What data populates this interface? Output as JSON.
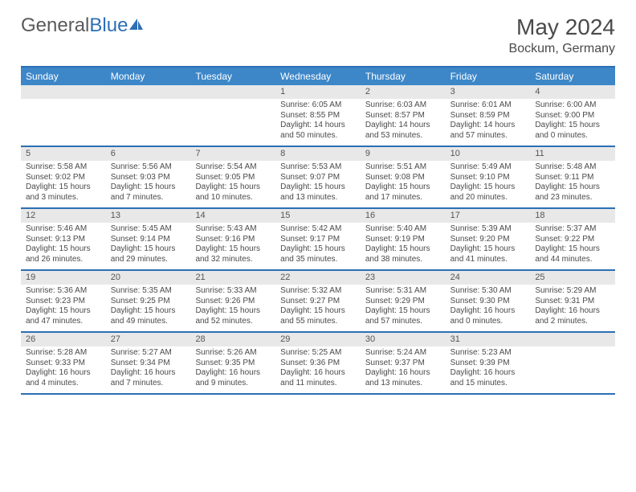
{
  "logo": {
    "part1": "General",
    "part2": "Blue"
  },
  "title": "May 2024",
  "location": "Bockum, Germany",
  "colors": {
    "header_bg": "#3d87c9",
    "border": "#2d6fb5",
    "daynum_bg": "#e8e8e8",
    "text": "#4a4a4a",
    "page_bg": "#ffffff"
  },
  "day_headers": [
    "Sunday",
    "Monday",
    "Tuesday",
    "Wednesday",
    "Thursday",
    "Friday",
    "Saturday"
  ],
  "weeks": [
    [
      {
        "n": "",
        "sr": "",
        "ss": "",
        "dl": ""
      },
      {
        "n": "",
        "sr": "",
        "ss": "",
        "dl": ""
      },
      {
        "n": "",
        "sr": "",
        "ss": "",
        "dl": ""
      },
      {
        "n": "1",
        "sr": "Sunrise: 6:05 AM",
        "ss": "Sunset: 8:55 PM",
        "dl": "Daylight: 14 hours and 50 minutes."
      },
      {
        "n": "2",
        "sr": "Sunrise: 6:03 AM",
        "ss": "Sunset: 8:57 PM",
        "dl": "Daylight: 14 hours and 53 minutes."
      },
      {
        "n": "3",
        "sr": "Sunrise: 6:01 AM",
        "ss": "Sunset: 8:59 PM",
        "dl": "Daylight: 14 hours and 57 minutes."
      },
      {
        "n": "4",
        "sr": "Sunrise: 6:00 AM",
        "ss": "Sunset: 9:00 PM",
        "dl": "Daylight: 15 hours and 0 minutes."
      }
    ],
    [
      {
        "n": "5",
        "sr": "Sunrise: 5:58 AM",
        "ss": "Sunset: 9:02 PM",
        "dl": "Daylight: 15 hours and 3 minutes."
      },
      {
        "n": "6",
        "sr": "Sunrise: 5:56 AM",
        "ss": "Sunset: 9:03 PM",
        "dl": "Daylight: 15 hours and 7 minutes."
      },
      {
        "n": "7",
        "sr": "Sunrise: 5:54 AM",
        "ss": "Sunset: 9:05 PM",
        "dl": "Daylight: 15 hours and 10 minutes."
      },
      {
        "n": "8",
        "sr": "Sunrise: 5:53 AM",
        "ss": "Sunset: 9:07 PM",
        "dl": "Daylight: 15 hours and 13 minutes."
      },
      {
        "n": "9",
        "sr": "Sunrise: 5:51 AM",
        "ss": "Sunset: 9:08 PM",
        "dl": "Daylight: 15 hours and 17 minutes."
      },
      {
        "n": "10",
        "sr": "Sunrise: 5:49 AM",
        "ss": "Sunset: 9:10 PM",
        "dl": "Daylight: 15 hours and 20 minutes."
      },
      {
        "n": "11",
        "sr": "Sunrise: 5:48 AM",
        "ss": "Sunset: 9:11 PM",
        "dl": "Daylight: 15 hours and 23 minutes."
      }
    ],
    [
      {
        "n": "12",
        "sr": "Sunrise: 5:46 AM",
        "ss": "Sunset: 9:13 PM",
        "dl": "Daylight: 15 hours and 26 minutes."
      },
      {
        "n": "13",
        "sr": "Sunrise: 5:45 AM",
        "ss": "Sunset: 9:14 PM",
        "dl": "Daylight: 15 hours and 29 minutes."
      },
      {
        "n": "14",
        "sr": "Sunrise: 5:43 AM",
        "ss": "Sunset: 9:16 PM",
        "dl": "Daylight: 15 hours and 32 minutes."
      },
      {
        "n": "15",
        "sr": "Sunrise: 5:42 AM",
        "ss": "Sunset: 9:17 PM",
        "dl": "Daylight: 15 hours and 35 minutes."
      },
      {
        "n": "16",
        "sr": "Sunrise: 5:40 AM",
        "ss": "Sunset: 9:19 PM",
        "dl": "Daylight: 15 hours and 38 minutes."
      },
      {
        "n": "17",
        "sr": "Sunrise: 5:39 AM",
        "ss": "Sunset: 9:20 PM",
        "dl": "Daylight: 15 hours and 41 minutes."
      },
      {
        "n": "18",
        "sr": "Sunrise: 5:37 AM",
        "ss": "Sunset: 9:22 PM",
        "dl": "Daylight: 15 hours and 44 minutes."
      }
    ],
    [
      {
        "n": "19",
        "sr": "Sunrise: 5:36 AM",
        "ss": "Sunset: 9:23 PM",
        "dl": "Daylight: 15 hours and 47 minutes."
      },
      {
        "n": "20",
        "sr": "Sunrise: 5:35 AM",
        "ss": "Sunset: 9:25 PM",
        "dl": "Daylight: 15 hours and 49 minutes."
      },
      {
        "n": "21",
        "sr": "Sunrise: 5:33 AM",
        "ss": "Sunset: 9:26 PM",
        "dl": "Daylight: 15 hours and 52 minutes."
      },
      {
        "n": "22",
        "sr": "Sunrise: 5:32 AM",
        "ss": "Sunset: 9:27 PM",
        "dl": "Daylight: 15 hours and 55 minutes."
      },
      {
        "n": "23",
        "sr": "Sunrise: 5:31 AM",
        "ss": "Sunset: 9:29 PM",
        "dl": "Daylight: 15 hours and 57 minutes."
      },
      {
        "n": "24",
        "sr": "Sunrise: 5:30 AM",
        "ss": "Sunset: 9:30 PM",
        "dl": "Daylight: 16 hours and 0 minutes."
      },
      {
        "n": "25",
        "sr": "Sunrise: 5:29 AM",
        "ss": "Sunset: 9:31 PM",
        "dl": "Daylight: 16 hours and 2 minutes."
      }
    ],
    [
      {
        "n": "26",
        "sr": "Sunrise: 5:28 AM",
        "ss": "Sunset: 9:33 PM",
        "dl": "Daylight: 16 hours and 4 minutes."
      },
      {
        "n": "27",
        "sr": "Sunrise: 5:27 AM",
        "ss": "Sunset: 9:34 PM",
        "dl": "Daylight: 16 hours and 7 minutes."
      },
      {
        "n": "28",
        "sr": "Sunrise: 5:26 AM",
        "ss": "Sunset: 9:35 PM",
        "dl": "Daylight: 16 hours and 9 minutes."
      },
      {
        "n": "29",
        "sr": "Sunrise: 5:25 AM",
        "ss": "Sunset: 9:36 PM",
        "dl": "Daylight: 16 hours and 11 minutes."
      },
      {
        "n": "30",
        "sr": "Sunrise: 5:24 AM",
        "ss": "Sunset: 9:37 PM",
        "dl": "Daylight: 16 hours and 13 minutes."
      },
      {
        "n": "31",
        "sr": "Sunrise: 5:23 AM",
        "ss": "Sunset: 9:39 PM",
        "dl": "Daylight: 16 hours and 15 minutes."
      },
      {
        "n": "",
        "sr": "",
        "ss": "",
        "dl": ""
      }
    ]
  ]
}
